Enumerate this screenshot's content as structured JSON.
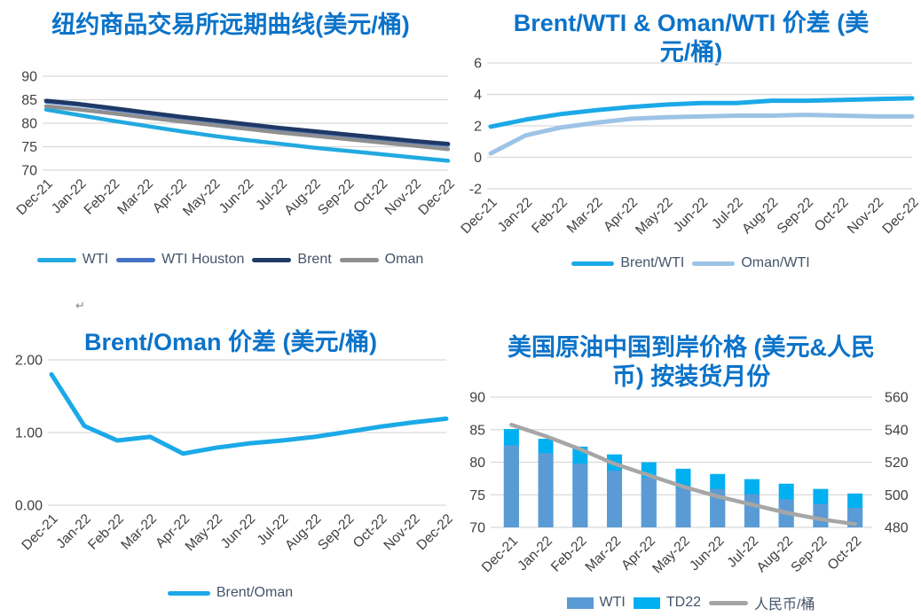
{
  "page": {
    "background": "#ffffff",
    "title_color": "#0B73C9",
    "axis_text_color": "#404040",
    "legend_text_color": "#44546A",
    "gridline_color": "#D9D9D9",
    "return_mark": "↵"
  },
  "chart_data": [
    {
      "id": "nymex",
      "type": "line",
      "title": "纽约商品交易所远期曲线(美元/桶)",
      "categories": [
        "Dec-21",
        "Jan-22",
        "Feb-22",
        "Mar-22",
        "Apr-22",
        "May-22",
        "Jun-22",
        "Jul-22",
        "Aug-22",
        "Sep-22",
        "Oct-22",
        "Nov-22",
        "Dec-22"
      ],
      "ylim": [
        70,
        90
      ],
      "yticks": [
        {
          "v": 90,
          "label": "90"
        },
        {
          "v": 85,
          "label": "85"
        },
        {
          "v": 80,
          "label": "80"
        },
        {
          "v": 75,
          "label": "75"
        },
        {
          "v": 70,
          "label": "70"
        }
      ],
      "grid": true,
      "legend_position": "bottom",
      "series": [
        {
          "name": "WTI",
          "color": "#22A9E0",
          "values": [
            82.9,
            81.7,
            80.5,
            79.4,
            78.3,
            77.3,
            76.4,
            75.6,
            74.8,
            74.1,
            73.4,
            72.7,
            72.0
          ]
        },
        {
          "name": "WTI Houston",
          "color": "#4472C4",
          "values": [
            84.6,
            83.9,
            83.0,
            82.1,
            81.2,
            80.4,
            79.6,
            78.8,
            78.1,
            77.4,
            76.7,
            76.0,
            75.4
          ]
        },
        {
          "name": "Brent",
          "color": "#1F3864",
          "values": [
            84.8,
            84.1,
            83.2,
            82.3,
            81.4,
            80.6,
            79.8,
            79.0,
            78.3,
            77.6,
            76.9,
            76.2,
            75.6
          ]
        },
        {
          "name": "Oman",
          "color": "#8F8F8F",
          "values": [
            83.6,
            82.9,
            82.1,
            81.2,
            80.4,
            79.6,
            78.8,
            78.0,
            77.3,
            76.6,
            75.9,
            75.2,
            74.5
          ]
        }
      ]
    },
    {
      "id": "spreads-wti",
      "type": "line",
      "title": "Brent/WTI & Oman/WTI 价差 (美元/桶)",
      "categories": [
        "Dec-21",
        "Jan-22",
        "Feb-22",
        "Mar-22",
        "Apr-22",
        "May-22",
        "Jun-22",
        "Jul-22",
        "Aug-22",
        "Sep-22",
        "Oct-22",
        "Nov-22",
        "Dec-22"
      ],
      "ylim": [
        -2,
        6
      ],
      "yticks": [
        {
          "v": 6,
          "label": "6"
        },
        {
          "v": 4,
          "label": "4"
        },
        {
          "v": 2,
          "label": "2"
        },
        {
          "v": 0,
          "label": "0"
        },
        {
          "v": -2,
          "label": "-2"
        }
      ],
      "grid": true,
      "legend_position": "bottom",
      "series": [
        {
          "name": "Brent/WTI",
          "color": "#1BA9E8",
          "values": [
            1.95,
            2.4,
            2.75,
            3.0,
            3.2,
            3.35,
            3.45,
            3.45,
            3.6,
            3.6,
            3.65,
            3.7,
            3.75
          ]
        },
        {
          "name": "Oman/WTI",
          "color": "#9DC3E6",
          "values": [
            0.25,
            1.4,
            1.9,
            2.2,
            2.45,
            2.55,
            2.6,
            2.65,
            2.65,
            2.7,
            2.65,
            2.6,
            2.6
          ]
        }
      ]
    },
    {
      "id": "brent-oman",
      "type": "line",
      "title": "Brent/Oman 价差 (美元/桶)",
      "categories": [
        "Dec-21",
        "Jan-22",
        "Feb-22",
        "Mar-22",
        "Apr-22",
        "May-22",
        "Jun-22",
        "Jul-22",
        "Aug-22",
        "Sep-22",
        "Oct-22",
        "Nov-22",
        "Dec-22"
      ],
      "ylim": [
        0,
        2
      ],
      "yticks": [
        {
          "v": 2,
          "label": "2.00"
        },
        {
          "v": 1,
          "label": "1.00"
        },
        {
          "v": 0,
          "label": "0.00"
        }
      ],
      "grid": true,
      "legend_position": "bottom",
      "series": [
        {
          "name": "Brent/Oman",
          "color": "#1BA9E8",
          "values": [
            1.8,
            1.09,
            0.89,
            0.94,
            0.71,
            0.79,
            0.85,
            0.89,
            0.94,
            1.01,
            1.08,
            1.14,
            1.19
          ]
        }
      ]
    },
    {
      "id": "cif-china",
      "type": "bar",
      "title": "美国原油中国到岸价格 (美元&人民币) 按装货月份",
      "categories": [
        "Dec-21",
        "Jan-22",
        "Feb-22",
        "Mar-22",
        "Apr-22",
        "May-22",
        "Jun-22",
        "Jul-22",
        "Aug-22",
        "Sep-22",
        "Oct-22"
      ],
      "ylim": [
        70,
        90
      ],
      "yticks": [
        {
          "v": 90,
          "label": "90"
        },
        {
          "v": 85,
          "label": "85"
        },
        {
          "v": 80,
          "label": "80"
        },
        {
          "v": 75,
          "label": "75"
        },
        {
          "v": 70,
          "label": "70"
        }
      ],
      "y2lim": [
        480,
        560
      ],
      "y2ticks": [
        {
          "v": 560,
          "label": "560"
        },
        {
          "v": 540,
          "label": "540"
        },
        {
          "v": 520,
          "label": "520"
        },
        {
          "v": 500,
          "label": "500"
        },
        {
          "v": 480,
          "label": "480"
        }
      ],
      "grid": true,
      "legend_position": "bottom",
      "series": [
        {
          "name": "WTI",
          "type": "bar",
          "color": "#5B9BD5",
          "values": [
            82.6,
            81.4,
            79.8,
            78.7,
            77.6,
            76.0,
            75.9,
            75.1,
            74.3,
            73.6,
            73.0
          ]
        },
        {
          "name": "TD22",
          "type": "bar",
          "color": "#00B0F0",
          "values": [
            85.1,
            83.6,
            82.4,
            81.2,
            80.0,
            79.0,
            78.2,
            77.4,
            76.7,
            75.9,
            75.2
          ]
        },
        {
          "name": "人民币/桶",
          "type": "line",
          "axis": "y2",
          "color": "#A6A6A6",
          "values": [
            543,
            536,
            528,
            519,
            512,
            505,
            499,
            494,
            489,
            485,
            482
          ]
        }
      ]
    }
  ]
}
